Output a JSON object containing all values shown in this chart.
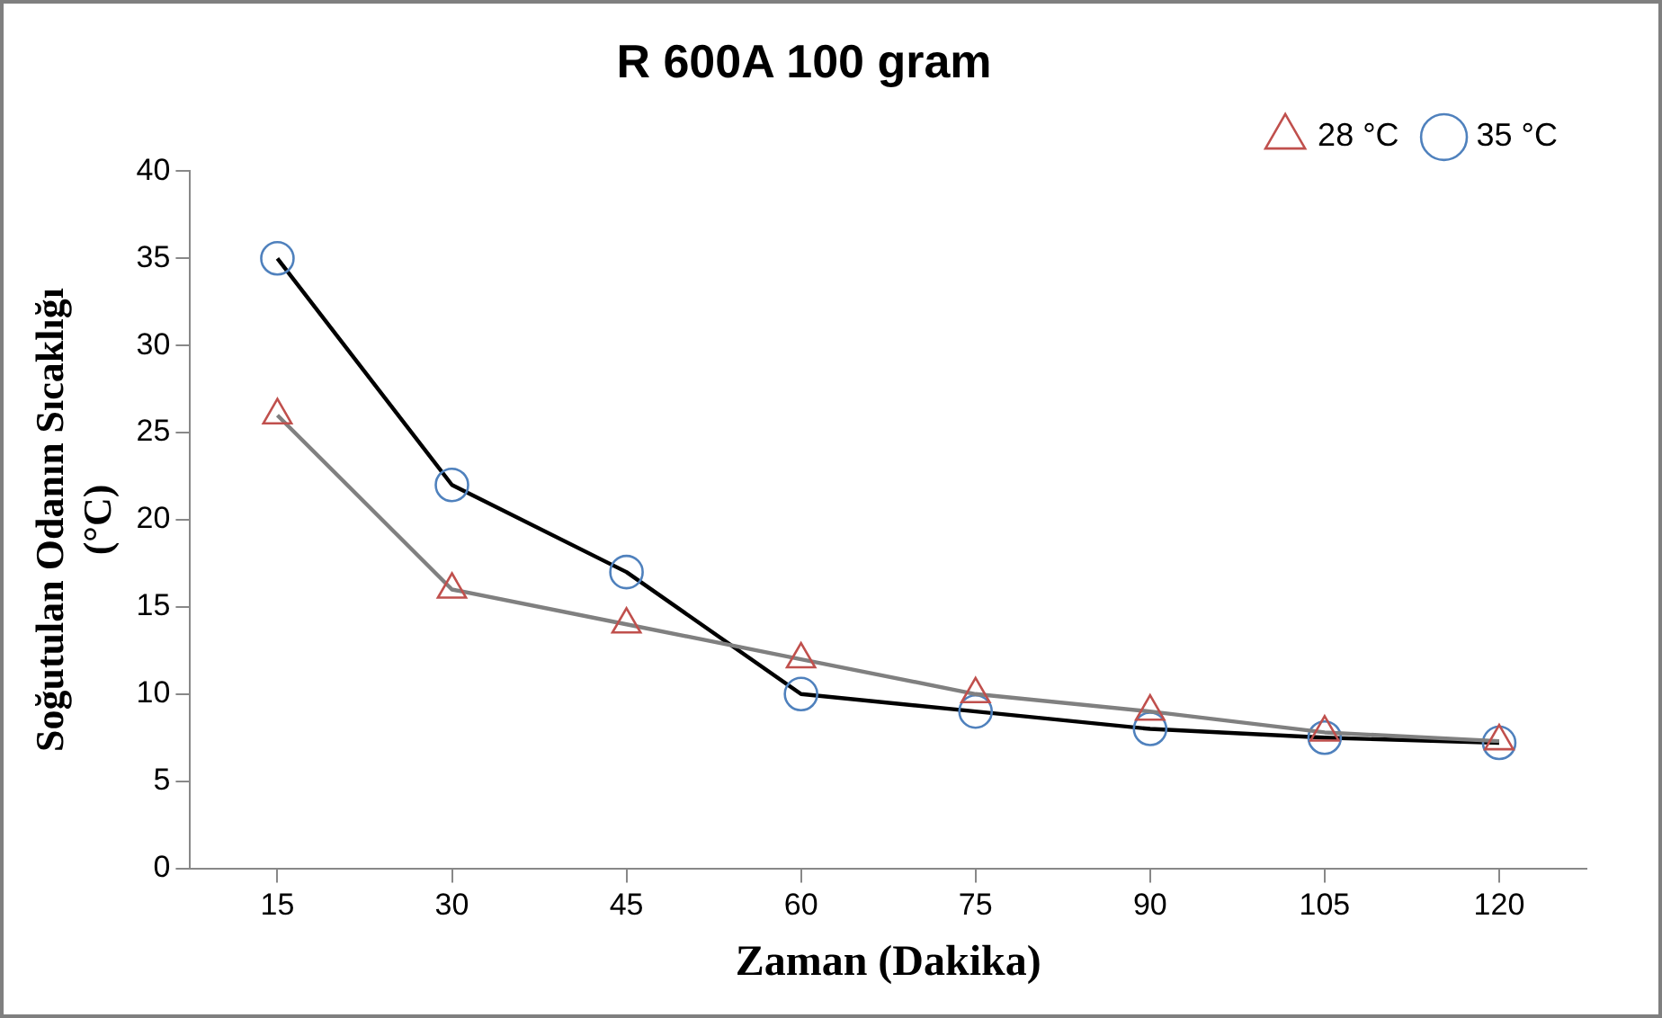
{
  "chart_data": {
    "type": "line",
    "title": "R 600A 100 gram",
    "xlabel": "Zaman (Dakika)",
    "ylabel": "Soğutulan Odanın Sıcaklığı\n(°C)",
    "categories": [
      "15",
      "30",
      "45",
      "60",
      "75",
      "90",
      "105",
      "120"
    ],
    "series": [
      {
        "name": "28 °C",
        "color": "#808080",
        "marker": "triangle",
        "colors": [
          "#c0504d",
          "#c0504d",
          "#c0504d",
          "#c0504d",
          "#c0504d",
          "#c0504d",
          "#c0504d",
          "#c0504d"
        ],
        "values": [
          26,
          16,
          14,
          12,
          10,
          9,
          7.8,
          7.3
        ]
      },
      {
        "name": "35 °C",
        "color": "#000000",
        "marker": "circle",
        "colors": [
          "#4f81bd",
          "#4f81bd",
          "#4f81bd",
          "#4f81bd",
          "#4f81bd",
          "#4f81bd",
          "#4f81bd",
          "#4f81bd"
        ],
        "values": [
          35,
          22,
          17,
          10,
          9,
          8,
          7.5,
          7.2
        ]
      }
    ],
    "ylim": [
      0,
      40
    ],
    "yticks": [
      0,
      5,
      10,
      15,
      20,
      25,
      30,
      35,
      40
    ],
    "grid": false,
    "legend": "top right",
    "line_style": "solid"
  }
}
